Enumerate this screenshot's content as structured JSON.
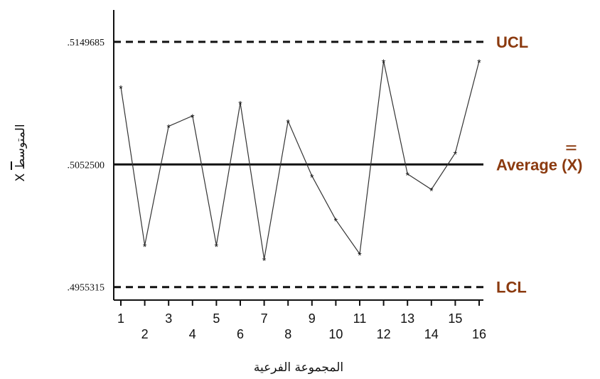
{
  "chart_data": {
    "type": "line",
    "x": [
      1,
      2,
      3,
      4,
      5,
      6,
      7,
      8,
      9,
      10,
      11,
      12,
      13,
      14,
      15,
      16
    ],
    "values": [
      0.51138,
      0.49884,
      0.50828,
      0.5091,
      0.49884,
      0.51013,
      0.49774,
      0.50869,
      0.50434,
      0.50086,
      0.49816,
      0.51345,
      0.5045,
      0.50327,
      0.50616,
      0.51345
    ],
    "ylim": [
      0.4945,
      0.5175
    ],
    "y_ticks": [
      ".4955315",
      ".5052500",
      ".5149685"
    ],
    "x_tick_labels": [
      "1",
      "2",
      "3",
      "4",
      "5",
      "6",
      "7",
      "8",
      "9",
      "10",
      "11",
      "12",
      "13",
      "14",
      "15",
      "16"
    ],
    "xlabel": "المجموعة الفرعية",
    "ylabel": "X المتوسط",
    "reference_lines": [
      {
        "label": "UCL",
        "value": 0.5149685,
        "style": "dashed"
      },
      {
        "label": "Average (X)",
        "value": 0.50525,
        "style": "solid"
      },
      {
        "label": "LCL",
        "value": 0.4955315,
        "style": "dashed"
      }
    ],
    "grid": false,
    "colors": {
      "line": "#333333",
      "axis": "#111111",
      "ref_label": "#8B3A0F"
    }
  }
}
